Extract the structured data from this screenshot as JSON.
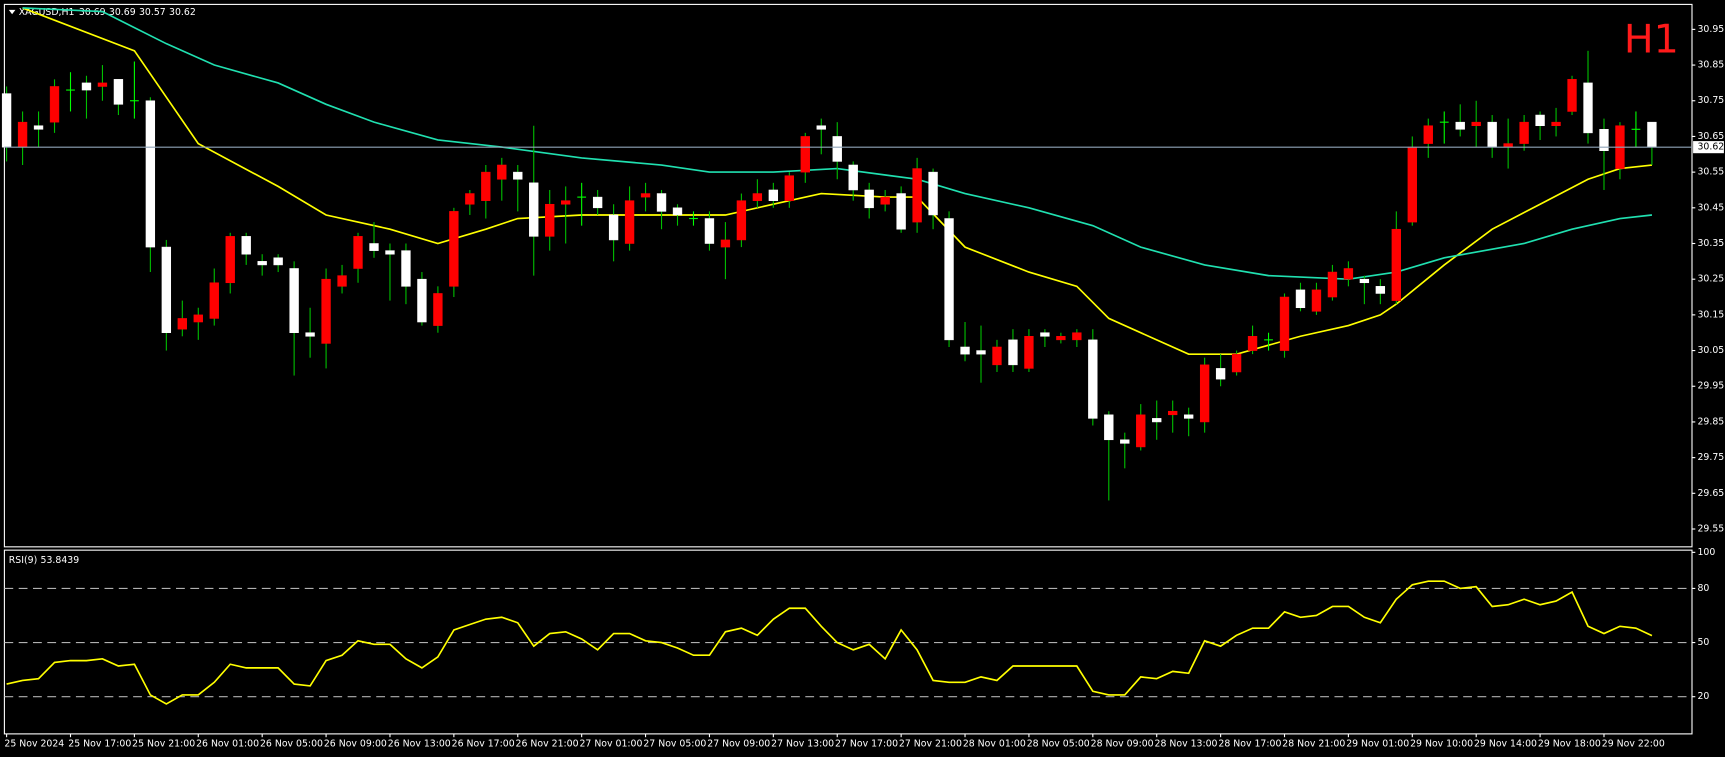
{
  "chart_data": [
    {
      "type": "candlestick",
      "symbol": "XAGUSD,H1",
      "timeframe_label": "H1",
      "categories": [
        "25 Nov 2024",
        null,
        null,
        null,
        "25 Nov 17:00",
        null,
        null,
        null,
        "25 Nov 21:00",
        null,
        null,
        null,
        "26 Nov 01:00",
        null,
        null,
        null,
        "26 Nov 05:00",
        null,
        null,
        null,
        "26 Nov 09:00",
        null,
        null,
        null,
        "26 Nov 13:00",
        null,
        null,
        null,
        "26 Nov 17:00",
        null,
        null,
        null,
        "26 Nov 21:00",
        null,
        null,
        null,
        "27 Nov 01:00",
        null,
        null,
        null,
        "27 Nov 05:00",
        null,
        null,
        null,
        "27 Nov 09:00",
        null,
        null,
        null,
        "27 Nov 13:00",
        null,
        null,
        null,
        "27 Nov 17:00",
        null,
        null,
        null,
        "27 Nov 21:00",
        null,
        null,
        null,
        "28 Nov 01:00",
        null,
        null,
        null,
        "28 Nov 05:00",
        null,
        null,
        null,
        "28 Nov 09:00",
        null,
        null,
        null,
        "28 Nov 13:00",
        null,
        null,
        null,
        "28 Nov 17:00",
        null,
        null,
        null,
        "28 Nov 21:00",
        null,
        null,
        null,
        "29 Nov 01:00",
        null,
        null,
        null,
        "29 Nov 10:00",
        null,
        null,
        null,
        "29 Nov 14:00",
        null,
        null,
        null,
        "29 Nov 18:00",
        null,
        null,
        null,
        "29 Nov 22:00",
        null,
        null,
        null
      ],
      "open": [
        30.77,
        30.62,
        30.68,
        30.69,
        30.78,
        30.8,
        30.79,
        30.81,
        30.75,
        30.75,
        30.34,
        30.11,
        30.13,
        30.14,
        30.24,
        30.37,
        30.3,
        30.31,
        30.28,
        30.1,
        30.07,
        30.23,
        30.28,
        30.35,
        30.33,
        30.33,
        30.25,
        30.12,
        30.23,
        30.46,
        30.47,
        30.53,
        30.55,
        30.52,
        30.37,
        30.46,
        30.48,
        30.48,
        30.43,
        30.35,
        30.48,
        30.49,
        30.45,
        30.42,
        30.42,
        30.34,
        30.36,
        30.47,
        30.5,
        30.47,
        30.55,
        30.68,
        30.65,
        30.57,
        30.5,
        30.46,
        30.49,
        30.41,
        30.55,
        30.42,
        30.06,
        30.05,
        30.01,
        30.08,
        30.0,
        30.1,
        30.08,
        30.08,
        30.08,
        29.87,
        29.8,
        29.78,
        29.86,
        29.87,
        29.87,
        29.85,
        30.0,
        29.99,
        30.05,
        30.08,
        30.05,
        30.22,
        30.16,
        30.2,
        30.25,
        30.25,
        30.23,
        30.19,
        30.41,
        30.63,
        30.69,
        30.69,
        30.68,
        30.69,
        30.62,
        30.63,
        30.71,
        30.68,
        30.72,
        30.8,
        30.67,
        30.56,
        30.67,
        30.69
      ],
      "high": [
        30.79,
        30.72,
        30.72,
        30.81,
        30.83,
        30.82,
        30.85,
        30.81,
        30.86,
        30.76,
        30.36,
        30.19,
        30.17,
        30.28,
        30.38,
        30.38,
        30.32,
        30.32,
        30.3,
        30.17,
        30.28,
        30.29,
        30.38,
        30.41,
        30.35,
        30.35,
        30.27,
        30.23,
        30.45,
        30.5,
        30.57,
        30.59,
        30.57,
        30.68,
        30.5,
        30.51,
        30.52,
        30.5,
        30.46,
        30.51,
        30.52,
        30.5,
        30.46,
        30.44,
        30.44,
        30.41,
        30.49,
        30.53,
        30.52,
        30.55,
        30.66,
        30.7,
        30.69,
        30.58,
        30.52,
        30.5,
        30.51,
        30.59,
        30.56,
        30.44,
        30.13,
        30.12,
        30.08,
        30.11,
        30.11,
        30.11,
        30.1,
        30.11,
        30.11,
        29.88,
        29.82,
        29.9,
        29.91,
        29.91,
        29.89,
        30.03,
        30.04,
        30.05,
        30.12,
        30.1,
        30.21,
        30.24,
        30.24,
        30.29,
        30.3,
        30.26,
        30.25,
        30.44,
        30.65,
        30.7,
        30.72,
        30.74,
        30.75,
        30.71,
        30.7,
        30.71,
        30.72,
        30.73,
        30.82,
        30.89,
        30.7,
        30.69,
        30.72,
        30.69
      ],
      "low": [
        30.58,
        30.57,
        30.62,
        30.66,
        30.72,
        30.7,
        30.75,
        30.71,
        30.7,
        30.27,
        30.05,
        30.09,
        30.08,
        30.12,
        30.21,
        30.29,
        30.26,
        30.27,
        29.98,
        30.03,
        30.0,
        30.21,
        30.24,
        30.31,
        30.19,
        30.18,
        30.12,
        30.1,
        30.2,
        30.43,
        30.42,
        30.47,
        30.44,
        30.26,
        30.33,
        30.35,
        30.4,
        30.43,
        30.3,
        30.33,
        30.44,
        30.39,
        30.4,
        30.4,
        30.33,
        30.25,
        30.34,
        30.45,
        30.45,
        30.45,
        30.52,
        30.6,
        30.53,
        30.47,
        30.42,
        30.44,
        30.38,
        30.38,
        30.39,
        30.06,
        30.02,
        29.96,
        29.99,
        29.99,
        29.99,
        30.06,
        30.07,
        30.06,
        29.84,
        29.63,
        29.72,
        29.77,
        29.8,
        29.82,
        29.81,
        29.82,
        29.95,
        29.98,
        30.04,
        30.05,
        30.03,
        30.16,
        30.15,
        30.19,
        30.23,
        30.18,
        30.18,
        30.18,
        30.4,
        30.59,
        30.63,
        30.65,
        30.62,
        30.59,
        30.56,
        30.61,
        30.64,
        30.65,
        30.71,
        30.63,
        30.5,
        30.53,
        30.62,
        30.57
      ],
      "close": [
        30.62,
        30.69,
        30.67,
        30.79,
        30.78,
        30.78,
        30.8,
        30.74,
        30.75,
        30.34,
        30.1,
        30.14,
        30.15,
        30.24,
        30.37,
        30.32,
        30.29,
        30.29,
        30.1,
        30.09,
        30.25,
        30.26,
        30.37,
        30.33,
        30.32,
        30.23,
        30.13,
        30.21,
        30.44,
        30.49,
        30.55,
        30.57,
        30.53,
        30.37,
        30.46,
        30.47,
        30.48,
        30.45,
        30.36,
        30.47,
        30.49,
        30.44,
        30.43,
        30.42,
        30.35,
        30.36,
        30.47,
        30.49,
        30.47,
        30.54,
        30.65,
        30.67,
        30.58,
        30.5,
        30.45,
        30.48,
        30.39,
        30.56,
        30.43,
        30.08,
        30.04,
        30.04,
        30.06,
        30.01,
        30.09,
        30.09,
        30.09,
        30.1,
        29.86,
        29.8,
        29.79,
        29.87,
        29.85,
        29.88,
        29.86,
        30.01,
        29.97,
        30.04,
        30.09,
        30.08,
        30.2,
        30.17,
        30.22,
        30.27,
        30.28,
        30.24,
        30.21,
        30.39,
        30.62,
        30.68,
        30.69,
        30.67,
        30.69,
        30.62,
        30.63,
        30.69,
        30.68,
        30.69,
        30.81,
        30.66,
        30.61,
        30.68,
        30.67,
        30.62
      ],
      "up_color": "#ff0000",
      "down_color": "#ffffff",
      "wick_color": "#00c000",
      "doji_color": "#00ff00",
      "lines": [
        {
          "color": "#ffff00",
          "x": [
            1,
            8,
            12,
            17,
            20,
            22,
            24,
            27,
            30,
            32,
            36,
            41,
            45,
            48,
            51,
            55,
            57,
            60,
            64,
            67,
            69,
            72,
            74,
            77,
            81,
            84,
            86,
            87,
            90,
            93,
            96,
            99,
            101,
            103
          ],
          "values": [
            31.01,
            30.89,
            30.63,
            30.51,
            30.43,
            30.41,
            30.39,
            30.35,
            30.39,
            30.42,
            30.43,
            30.43,
            30.43,
            30.46,
            30.49,
            30.48,
            30.48,
            30.34,
            30.27,
            30.23,
            30.14,
            30.08,
            30.04,
            30.04,
            30.09,
            30.12,
            30.15,
            30.18,
            30.29,
            30.39,
            30.46,
            30.53,
            30.56,
            30.57
          ]
        },
        {
          "color": "#20e0b0",
          "x": [
            1,
            6,
            10,
            13,
            17,
            20,
            23,
            27,
            31,
            36,
            41,
            44,
            48,
            52,
            57,
            60,
            64,
            68,
            71,
            75,
            79,
            84,
            87,
            90,
            95,
            98,
            101,
            103
          ],
          "values": [
            31.01,
            31.0,
            30.91,
            30.85,
            30.8,
            30.74,
            30.69,
            30.64,
            30.62,
            30.59,
            30.57,
            30.55,
            30.55,
            30.56,
            30.53,
            30.49,
            30.45,
            30.4,
            30.34,
            30.29,
            30.26,
            30.25,
            30.27,
            30.31,
            30.35,
            30.39,
            30.42,
            30.43
          ]
        }
      ],
      "current_price": 30.62,
      "ylim": [
        29.5,
        31.02
      ],
      "yticks": [
        30.95,
        30.85,
        30.75,
        30.65,
        30.55,
        30.45,
        30.35,
        30.25,
        30.15,
        30.05,
        29.95,
        29.85,
        29.75,
        29.65,
        29.55
      ]
    },
    {
      "type": "line",
      "title": "RSI(9)",
      "color": "#ffff00",
      "values": [
        27,
        29,
        30,
        39,
        40,
        40,
        41,
        37,
        38,
        21,
        16,
        21,
        21,
        28,
        38,
        36,
        36,
        36,
        27,
        26,
        40,
        43,
        51,
        49,
        49,
        41,
        36,
        42,
        57,
        60,
        63,
        64,
        61,
        48,
        55,
        56,
        52,
        46,
        55,
        55,
        51,
        50,
        47,
        43,
        43,
        56,
        58,
        54,
        63,
        69,
        69,
        59,
        50,
        46,
        49,
        41,
        57,
        46,
        29,
        28,
        28,
        31,
        29,
        37,
        37,
        37,
        37,
        37,
        23,
        21,
        21,
        31,
        30,
        34,
        33,
        51,
        48,
        54,
        58,
        58,
        67,
        64,
        65,
        70,
        70,
        64,
        61,
        74,
        82,
        84,
        84,
        80,
        81,
        70,
        71,
        74,
        71,
        73,
        78,
        59,
        55,
        59,
        58,
        53.8439
      ],
      "levels": [
        80,
        50,
        20
      ],
      "ylim": [
        0,
        100
      ],
      "yticks": [
        100,
        80,
        50,
        20
      ]
    }
  ]
}
